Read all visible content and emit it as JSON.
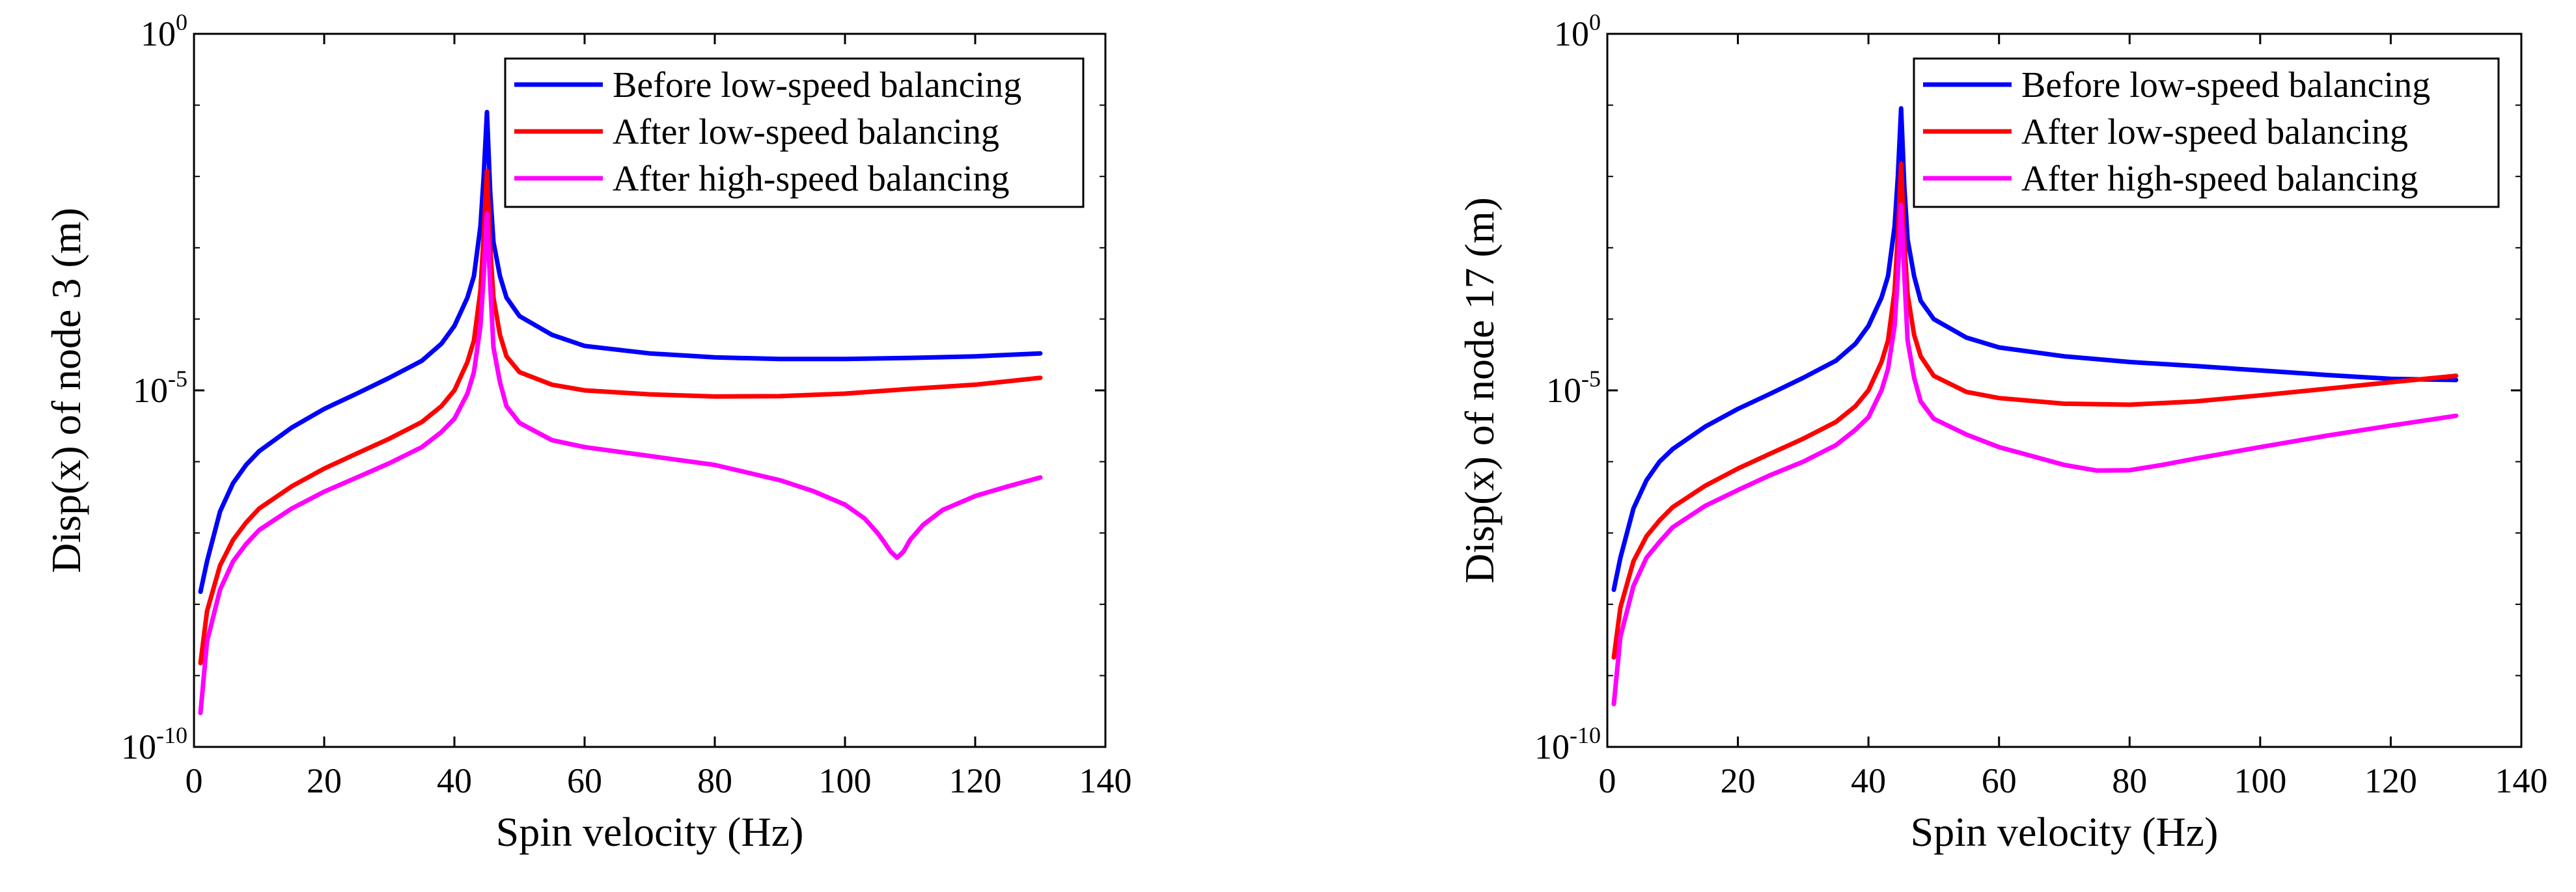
{
  "chart_data": [
    {
      "type": "line",
      "yscale": "log",
      "xlabel": "Spin velocity (Hz)",
      "ylabel": "Disp(x) of node 3 (m)",
      "xlim": [
        0,
        140
      ],
      "ylim": [
        1e-10,
        1
      ],
      "xticks": [
        "0",
        "20",
        "40",
        "60",
        "80",
        "100",
        "120",
        "140"
      ],
      "yticks": [
        {
          "base": "10",
          "exp": "-10"
        },
        {
          "base": "10",
          "exp": "-5"
        },
        {
          "base": "10",
          "exp": "0"
        }
      ],
      "legend_position": "top-right",
      "series": [
        {
          "name": "Before low-speed balancing",
          "color": "#0000ff",
          "x": [
            1,
            2,
            4,
            6,
            8,
            10,
            15,
            20,
            25,
            30,
            35,
            38,
            40,
            42,
            43,
            44,
            44.5,
            45,
            45.5,
            46,
            47,
            48,
            50,
            55,
            60,
            70,
            80,
            90,
            100,
            110,
            120,
            130
          ],
          "y": [
            1.5e-08,
            4e-08,
            2e-07,
            5e-07,
            9e-07,
            1.4e-06,
            3e-06,
            5.5e-06,
            9e-06,
            1.5e-05,
            2.6e-05,
            4.5e-05,
            8e-05,
            0.0002,
            0.0004,
            0.002,
            0.01,
            0.08,
            0.006,
            0.0012,
            0.0004,
            0.0002,
            0.00011,
            6e-05,
            4.2e-05,
            3.3e-05,
            2.9e-05,
            2.75e-05,
            2.75e-05,
            2.85e-05,
            3e-05,
            3.3e-05
          ]
        },
        {
          "name": "After low-speed balancing",
          "color": "#ff0000",
          "x": [
            1,
            2,
            4,
            6,
            8,
            10,
            15,
            20,
            25,
            30,
            35,
            38,
            40,
            42,
            43,
            44,
            44.5,
            45,
            45.5,
            46,
            47,
            48,
            50,
            55,
            60,
            70,
            80,
            90,
            100,
            110,
            120,
            130
          ],
          "y": [
            1.5e-09,
            8e-09,
            3.5e-08,
            8e-08,
            1.4e-07,
            2.2e-07,
            4.5e-07,
            8e-07,
            1.3e-06,
            2.1e-06,
            3.6e-06,
            6e-06,
            1e-05,
            2.5e-05,
            5e-05,
            0.00025,
            0.0015,
            0.012,
            0.001,
            0.0002,
            6e-05,
            3e-05,
            1.8e-05,
            1.2e-05,
            1e-05,
            8.8e-06,
            8.2e-06,
            8.3e-06,
            9e-06,
            1.05e-05,
            1.2e-05,
            1.5e-05
          ]
        },
        {
          "name": "After high-speed balancing",
          "color": "#ff00ff",
          "x": [
            1,
            2,
            4,
            6,
            8,
            10,
            15,
            20,
            25,
            30,
            35,
            38,
            40,
            42,
            43,
            44,
            44.5,
            45,
            45.5,
            46,
            47,
            48,
            50,
            55,
            60,
            70,
            80,
            90,
            95,
            100,
            103,
            105,
            106,
            107,
            108,
            109,
            110,
            112,
            115,
            120,
            125,
            130
          ],
          "y": [
            3e-10,
            3e-09,
            1.6e-08,
            4e-08,
            7e-08,
            1.1e-07,
            2.2e-07,
            3.8e-07,
            6e-07,
            9.5e-07,
            1.6e-06,
            2.6e-06,
            4e-06,
            9e-06,
            1.8e-05,
            8e-05,
            0.0004,
            0.003,
            0.0003,
            4e-05,
            1.3e-05,
            6e-06,
            3.5e-06,
            2e-06,
            1.6e-06,
            1.2e-06,
            9e-07,
            5.5e-07,
            3.9e-07,
            2.5e-07,
            1.6e-07,
            1e-07,
            7.5e-08,
            5.5e-08,
            4.5e-08,
            5.5e-08,
            8e-08,
            1.3e-07,
            2.1e-07,
            3.3e-07,
            4.5e-07,
            6e-07
          ]
        }
      ]
    },
    {
      "type": "line",
      "yscale": "log",
      "xlabel": "Spin velocity (Hz)",
      "ylabel": "Disp(x) of node 17 (m)",
      "xlim": [
        0,
        140
      ],
      "ylim": [
        1e-10,
        1
      ],
      "xticks": [
        "0",
        "20",
        "40",
        "60",
        "80",
        "100",
        "120",
        "140"
      ],
      "yticks": [
        {
          "base": "10",
          "exp": "-10"
        },
        {
          "base": "10",
          "exp": "-5"
        },
        {
          "base": "10",
          "exp": "0"
        }
      ],
      "legend_position": "top-right",
      "series": [
        {
          "name": "Before low-speed balancing",
          "color": "#0000ff",
          "x": [
            1,
            2,
            4,
            6,
            8,
            10,
            15,
            20,
            25,
            30,
            35,
            38,
            40,
            42,
            43,
            44,
            44.5,
            45,
            45.5,
            46,
            47,
            48,
            50,
            55,
            60,
            70,
            80,
            90,
            100,
            110,
            120,
            130
          ],
          "y": [
            1.6e-08,
            4.5e-08,
            2.2e-07,
            5.5e-07,
            1e-06,
            1.5e-06,
            3.1e-06,
            5.5e-06,
            9e-06,
            1.5e-05,
            2.6e-05,
            4.5e-05,
            8e-05,
            0.0002,
            0.0004,
            0.002,
            0.01,
            0.09,
            0.007,
            0.0013,
            0.0004,
            0.00018,
            0.0001,
            5.5e-05,
            4e-05,
            3e-05,
            2.5e-05,
            2.2e-05,
            1.9e-05,
            1.65e-05,
            1.45e-05,
            1.4e-05
          ]
        },
        {
          "name": "After low-speed balancing",
          "color": "#ff0000",
          "x": [
            1,
            2,
            4,
            6,
            8,
            10,
            15,
            20,
            25,
            30,
            35,
            38,
            40,
            42,
            43,
            44,
            44.5,
            45,
            45.5,
            46,
            47,
            48,
            50,
            55,
            60,
            70,
            80,
            90,
            100,
            110,
            120,
            130
          ],
          "y": [
            1.8e-09,
            9e-09,
            4e-08,
            9e-08,
            1.5e-07,
            2.3e-07,
            4.6e-07,
            8e-07,
            1.3e-06,
            2.1e-06,
            3.6e-06,
            6e-06,
            1e-05,
            2.5e-05,
            5e-05,
            0.00025,
            0.0015,
            0.015,
            0.0012,
            0.00022,
            6e-05,
            3e-05,
            1.6e-05,
            9.5e-06,
            7.8e-06,
            6.5e-06,
            6.3e-06,
            7e-06,
            8.5e-06,
            1.05e-05,
            1.3e-05,
            1.6e-05
          ]
        },
        {
          "name": "After high-speed balancing",
          "color": "#ff00ff",
          "x": [
            1,
            2,
            4,
            6,
            8,
            10,
            15,
            20,
            25,
            30,
            35,
            38,
            40,
            42,
            43,
            44,
            44.5,
            45,
            45.5,
            46,
            47,
            48,
            50,
            55,
            60,
            65,
            70,
            75,
            80,
            85,
            90,
            100,
            110,
            120,
            130
          ],
          "y": [
            4e-10,
            3.5e-09,
            1.8e-08,
            4.5e-08,
            7.5e-08,
            1.2e-07,
            2.4e-07,
            4e-07,
            6.5e-07,
            1e-06,
            1.7e-06,
            2.8e-06,
            4.2e-06,
            1e-05,
            2e-05,
            8e-05,
            0.0004,
            0.004,
            0.0004,
            5e-05,
            1.5e-05,
            7e-06,
            4e-06,
            2.4e-06,
            1.6e-06,
            1.2e-06,
            9e-07,
            7.5e-07,
            7.6e-07,
            9e-07,
            1.1e-06,
            1.6e-06,
            2.3e-06,
            3.2e-06,
            4.4e-06
          ]
        }
      ]
    }
  ]
}
